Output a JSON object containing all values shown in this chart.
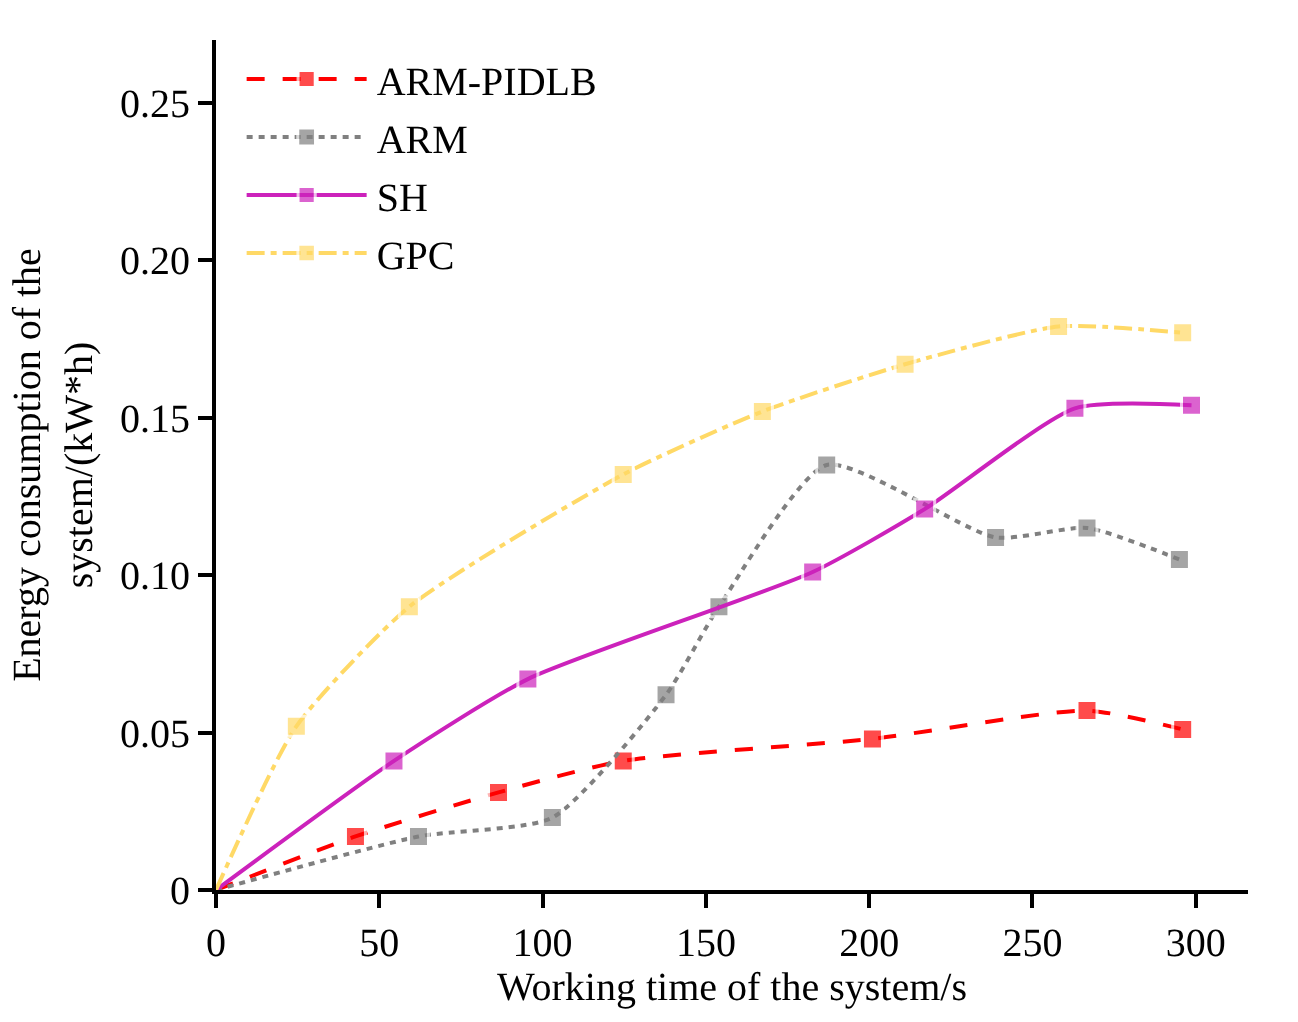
{
  "chart_data": {
    "type": "line",
    "xlabel": "Working time of the system/s",
    "ylabel": "Energy consumption of the\nsystem/(kW*h)",
    "xlim": [
      0,
      316
    ],
    "xticks": [
      0,
      50,
      100,
      150,
      200,
      250,
      300
    ],
    "ylim": [
      0,
      0.27
    ],
    "yticks": [
      0,
      0.05,
      {
        "value": 0.1,
        "label": "0.10"
      },
      0.15,
      {
        "value": 0.2,
        "label": "0.20"
      },
      0.25
    ],
    "legend": "top left",
    "marker": "square",
    "series": [
      {
        "name": "ARM-PIDLB",
        "color": "#ff0000",
        "line_style": "dashed",
        "x": [
          0,
          42.7,
          86.5,
          124.7,
          201,
          266.7,
          296
        ],
        "values": [
          0,
          0.017,
          0.031,
          0.041,
          0.048,
          0.057,
          0.051
        ]
      },
      {
        "name": "ARM",
        "color": "#808080",
        "line_style": "dotted",
        "x": [
          0,
          62,
          103,
          137.8,
          154,
          187,
          238.7,
          266.7,
          295
        ],
        "values": [
          0,
          0.017,
          0.023,
          0.062,
          0.09,
          0.135,
          0.112,
          0.115,
          0.105
        ]
      },
      {
        "name": "SH",
        "color": "#cc22bb",
        "line_style": "solid",
        "x": [
          0,
          54.5,
          95.5,
          182.7,
          217,
          263,
          298.7
        ],
        "values": [
          0,
          0.041,
          0.067,
          0.101,
          0.121,
          0.153,
          0.154
        ]
      },
      {
        "name": "GPC",
        "color": "#ffd966",
        "line_style": "dashdot",
        "x": [
          0,
          24.6,
          59.2,
          124.7,
          167.3,
          211,
          258,
          296
        ],
        "values": [
          0,
          0.052,
          0.09,
          0.132,
          0.152,
          0.167,
          0.179,
          0.177
        ]
      }
    ]
  }
}
